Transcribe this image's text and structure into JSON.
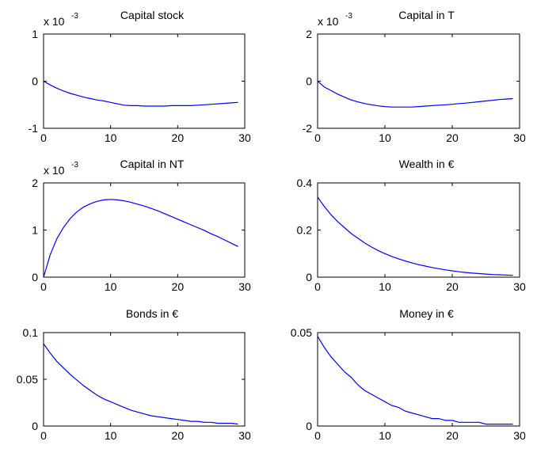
{
  "colors": {
    "line": "#0000ff",
    "axis": "#000000",
    "background": "#ffffff"
  },
  "chart_data": [
    {
      "type": "line",
      "title": "Capital stock",
      "multiplier_label": "x 10",
      "multiplier_exponent": "-3",
      "xlim": [
        0,
        30
      ],
      "ylim": [
        -1,
        1
      ],
      "xticks": [
        0,
        10,
        20,
        30
      ],
      "yticks": [
        1,
        0,
        -1
      ],
      "xtick_labels": [
        "0",
        "10",
        "20",
        "30"
      ],
      "ytick_labels": [
        "1",
        "0",
        "-1"
      ],
      "xlabel": "",
      "ylabel": "",
      "series": [
        {
          "x": [
            0,
            1,
            2,
            3,
            4,
            5,
            6,
            7,
            8,
            9,
            10,
            11,
            12,
            13,
            14,
            15,
            16,
            17,
            18,
            19,
            20,
            21,
            22,
            23,
            24,
            25,
            26,
            27,
            28,
            29
          ],
          "values": [
            0.0,
            -0.08,
            -0.15,
            -0.21,
            -0.26,
            -0.3,
            -0.34,
            -0.37,
            -0.4,
            -0.42,
            -0.45,
            -0.48,
            -0.51,
            -0.52,
            -0.52,
            -0.53,
            -0.53,
            -0.53,
            -0.53,
            -0.52,
            -0.52,
            -0.52,
            -0.52,
            -0.51,
            -0.5,
            -0.49,
            -0.48,
            -0.47,
            -0.46,
            -0.45
          ]
        }
      ]
    },
    {
      "type": "line",
      "title": "Capital in T",
      "multiplier_label": "x 10",
      "multiplier_exponent": "-3",
      "xlim": [
        0,
        30
      ],
      "ylim": [
        -2,
        2
      ],
      "xticks": [
        0,
        10,
        20,
        30
      ],
      "yticks": [
        2,
        0,
        -2
      ],
      "xtick_labels": [
        "0",
        "10",
        "20",
        "30"
      ],
      "ytick_labels": [
        "2",
        "0",
        "-2"
      ],
      "xlabel": "",
      "ylabel": "",
      "series": [
        {
          "x": [
            0,
            1,
            2,
            3,
            4,
            5,
            6,
            7,
            8,
            9,
            10,
            11,
            12,
            13,
            14,
            15,
            16,
            17,
            18,
            19,
            20,
            21,
            22,
            23,
            24,
            25,
            26,
            27,
            28,
            29
          ],
          "values": [
            0.0,
            -0.25,
            -0.4,
            -0.55,
            -0.68,
            -0.8,
            -0.88,
            -0.95,
            -1.0,
            -1.05,
            -1.08,
            -1.1,
            -1.1,
            -1.1,
            -1.1,
            -1.08,
            -1.06,
            -1.04,
            -1.02,
            -1.0,
            -0.98,
            -0.95,
            -0.93,
            -0.9,
            -0.87,
            -0.84,
            -0.81,
            -0.78,
            -0.76,
            -0.74
          ]
        }
      ]
    },
    {
      "type": "line",
      "title": "Capital in NT",
      "multiplier_label": "x 10",
      "multiplier_exponent": "-3",
      "xlim": [
        0,
        30
      ],
      "ylim": [
        0,
        2
      ],
      "xticks": [
        0,
        10,
        20,
        30
      ],
      "yticks": [
        2,
        1,
        0
      ],
      "xtick_labels": [
        "0",
        "10",
        "20",
        "30"
      ],
      "ytick_labels": [
        "2",
        "1",
        "0"
      ],
      "xlabel": "",
      "ylabel": "",
      "series": [
        {
          "x": [
            0,
            1,
            2,
            3,
            4,
            5,
            6,
            7,
            8,
            9,
            10,
            11,
            12,
            13,
            14,
            15,
            16,
            17,
            18,
            19,
            20,
            21,
            22,
            23,
            24,
            25,
            26,
            27,
            28,
            29
          ],
          "values": [
            0.0,
            0.48,
            0.82,
            1.06,
            1.25,
            1.39,
            1.49,
            1.56,
            1.61,
            1.64,
            1.65,
            1.64,
            1.62,
            1.59,
            1.55,
            1.51,
            1.46,
            1.41,
            1.35,
            1.29,
            1.23,
            1.17,
            1.11,
            1.05,
            0.99,
            0.92,
            0.86,
            0.79,
            0.72,
            0.65
          ]
        }
      ]
    },
    {
      "type": "line",
      "title": "Wealth in €",
      "multiplier_label": "",
      "multiplier_exponent": "",
      "xlim": [
        0,
        30
      ],
      "ylim": [
        0,
        0.4
      ],
      "xticks": [
        0,
        10,
        20,
        30
      ],
      "yticks": [
        0.4,
        0.2,
        0
      ],
      "xtick_labels": [
        "0",
        "10",
        "20",
        "30"
      ],
      "ytick_labels": [
        "0.4",
        "0.2",
        "0"
      ],
      "xlabel": "",
      "ylabel": "",
      "series": [
        {
          "x": [
            0,
            1,
            2,
            3,
            4,
            5,
            6,
            7,
            8,
            9,
            10,
            11,
            12,
            13,
            14,
            15,
            16,
            17,
            18,
            19,
            20,
            21,
            22,
            23,
            24,
            25,
            26,
            27,
            28,
            29
          ],
          "values": [
            0.34,
            0.3,
            0.265,
            0.235,
            0.21,
            0.185,
            0.165,
            0.145,
            0.128,
            0.113,
            0.1,
            0.088,
            0.078,
            0.069,
            0.061,
            0.053,
            0.047,
            0.041,
            0.036,
            0.031,
            0.027,
            0.023,
            0.02,
            0.017,
            0.015,
            0.013,
            0.011,
            0.01,
            0.009,
            0.008
          ]
        }
      ]
    },
    {
      "type": "line",
      "title": "Bonds in €",
      "multiplier_label": "",
      "multiplier_exponent": "",
      "xlim": [
        0,
        30
      ],
      "ylim": [
        0,
        0.1
      ],
      "xticks": [
        0,
        10,
        20,
        30
      ],
      "yticks": [
        0.1,
        0.05,
        0
      ],
      "xtick_labels": [
        "0",
        "10",
        "20",
        "30"
      ],
      "ytick_labels": [
        "0.1",
        "0.05",
        "0"
      ],
      "xlabel": "",
      "ylabel": "",
      "series": [
        {
          "x": [
            0,
            1,
            2,
            3,
            4,
            5,
            6,
            7,
            8,
            9,
            10,
            11,
            12,
            13,
            14,
            15,
            16,
            17,
            18,
            19,
            20,
            21,
            22,
            23,
            24,
            25,
            26,
            27,
            28,
            29
          ],
          "values": [
            0.088,
            0.078,
            0.069,
            0.062,
            0.055,
            0.049,
            0.043,
            0.038,
            0.033,
            0.029,
            0.026,
            0.023,
            0.02,
            0.017,
            0.015,
            0.013,
            0.011,
            0.01,
            0.009,
            0.008,
            0.007,
            0.006,
            0.005,
            0.005,
            0.004,
            0.004,
            0.003,
            0.003,
            0.003,
            0.002
          ]
        }
      ]
    },
    {
      "type": "line",
      "title": "Money in €",
      "multiplier_label": "",
      "multiplier_exponent": "",
      "xlim": [
        0,
        30
      ],
      "ylim": [
        0,
        0.05
      ],
      "xticks": [
        0,
        10,
        20,
        30
      ],
      "yticks": [
        0.05,
        0
      ],
      "xtick_labels": [
        "0",
        "10",
        "20",
        "30"
      ],
      "ytick_labels": [
        "0.05",
        "0"
      ],
      "xlabel": "",
      "ylabel": "",
      "series": [
        {
          "x": [
            0,
            1,
            2,
            3,
            4,
            5,
            6,
            7,
            8,
            9,
            10,
            11,
            12,
            13,
            14,
            15,
            16,
            17,
            18,
            19,
            20,
            21,
            22,
            23,
            24,
            25,
            26,
            27,
            28,
            29
          ],
          "values": [
            0.048,
            0.042,
            0.037,
            0.033,
            0.029,
            0.026,
            0.022,
            0.019,
            0.017,
            0.015,
            0.013,
            0.011,
            0.01,
            0.008,
            0.007,
            0.006,
            0.005,
            0.004,
            0.004,
            0.003,
            0.003,
            0.002,
            0.002,
            0.002,
            0.002,
            0.001,
            0.001,
            0.001,
            0.001,
            0.001
          ]
        }
      ]
    }
  ]
}
